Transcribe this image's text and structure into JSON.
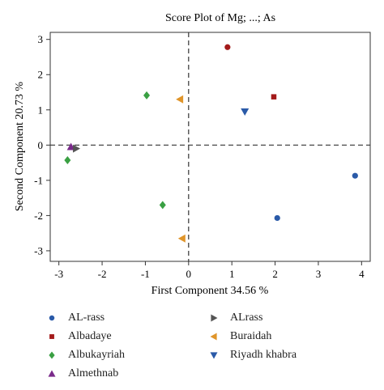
{
  "chart_data": {
    "type": "scatter",
    "title": "Score Plot of Mg; ...; As",
    "xlabel": "First Component 34.56 %",
    "ylabel": "Second Component 20.73 %",
    "xlim": [
      -3.2,
      4.2
    ],
    "ylim": [
      -3.3,
      3.2
    ],
    "xticks": [
      -3,
      -2,
      -1,
      0,
      1,
      2,
      3,
      4
    ],
    "yticks": [
      -3,
      -2,
      -1,
      0,
      1,
      2,
      3
    ],
    "reference_lines": {
      "x": 0,
      "y": 0,
      "style": "dashed"
    },
    "legend_position": "bottom",
    "series": [
      {
        "name": "AL-rass",
        "marker": "circle",
        "color": "#2a5aa8",
        "points": [
          {
            "x": 3.85,
            "y": -0.87
          },
          {
            "x": 2.05,
            "y": -2.07
          }
        ]
      },
      {
        "name": "Albadaye",
        "marker": "square",
        "color": "#a31a1a",
        "points": [
          {
            "x": 1.97,
            "y": 1.37
          }
        ]
      },
      {
        "name": "Albukayriah",
        "marker": "diamond",
        "color": "#3aa043",
        "points": [
          {
            "x": -0.97,
            "y": 1.41
          },
          {
            "x": -2.8,
            "y": -0.43
          },
          {
            "x": -0.6,
            "y": -1.7
          }
        ]
      },
      {
        "name": "Almethnab",
        "marker": "triangle-up",
        "color": "#7a2a8a",
        "points": [
          {
            "x": -2.72,
            "y": -0.05
          }
        ]
      },
      {
        "name": "ALrass",
        "marker": "triangle-right",
        "color": "#555555",
        "points": [
          {
            "x": -2.6,
            "y": -0.1
          }
        ]
      },
      {
        "name": "Buraidah",
        "marker": "triangle-left",
        "color": "#e0952a",
        "points": [
          {
            "x": -0.2,
            "y": 1.3
          },
          {
            "x": -0.15,
            "y": -2.65
          }
        ]
      },
      {
        "name": "Riyadh khabra",
        "marker": "triangle-down",
        "color": "#2a5aa8",
        "points": [
          {
            "x": 1.3,
            "y": 0.95
          }
        ]
      },
      {
        "name": "",
        "marker": "circle",
        "color": "#a31a1a",
        "points": [
          {
            "x": 0.9,
            "y": 2.78
          }
        ]
      }
    ]
  }
}
